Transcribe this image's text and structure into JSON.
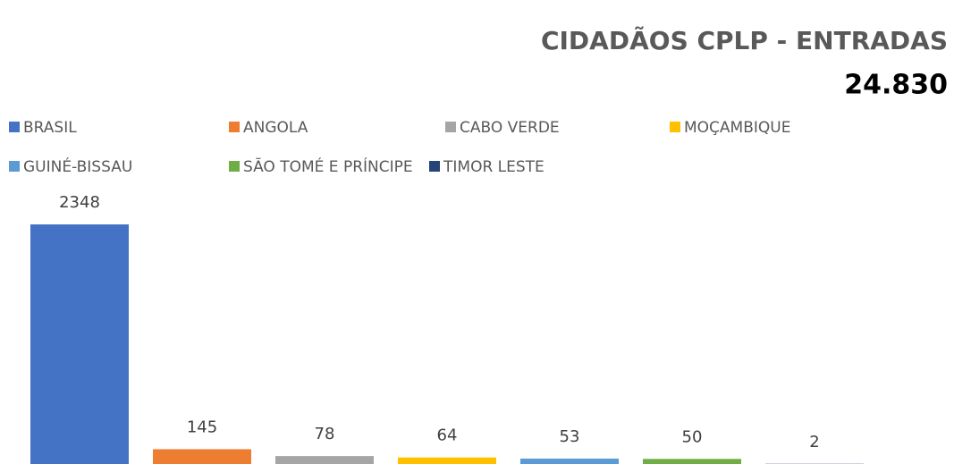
{
  "chart_data": {
    "type": "bar",
    "title": "CIDADÃOS CPLP - ENTRADAS",
    "subtitle": "24.830",
    "categories": [
      "BRASIL",
      "ANGOLA",
      "CABO VERDE",
      "MOÇAMBIQUE",
      "GUINÉ-BISSAU",
      "SÃO TOMÉ E PRÍNCIPE",
      "TIMOR LESTE"
    ],
    "values": [
      2348,
      145,
      78,
      64,
      53,
      50,
      2
    ],
    "colors": [
      "#4472c4",
      "#ed7d31",
      "#a5a5a5",
      "#ffc000",
      "#5b9bd5",
      "#70ad47",
      "#264478"
    ],
    "legend": "top"
  }
}
